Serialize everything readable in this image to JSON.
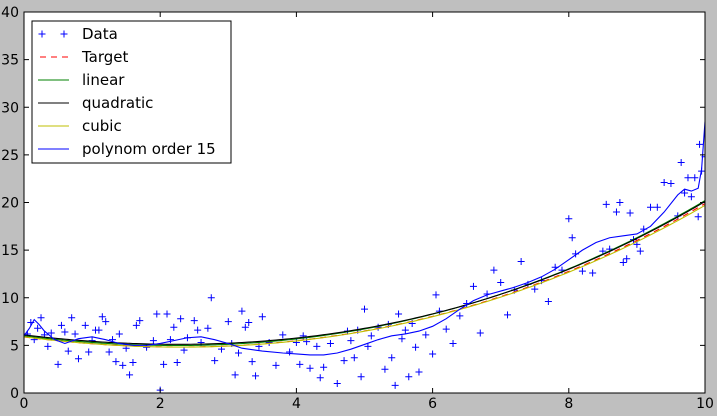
{
  "chart_data": {
    "type": "line",
    "title": "",
    "xlabel": "",
    "ylabel": "",
    "xlim": [
      0,
      10
    ],
    "ylim": [
      0,
      40
    ],
    "xticks": [
      0,
      2,
      4,
      6,
      8,
      10
    ],
    "yticks": [
      0,
      5,
      10,
      15,
      20,
      25,
      30,
      35,
      40
    ],
    "grid": false,
    "legend_position": "top-left",
    "series": [
      {
        "name": "Data",
        "style": "markers-plus",
        "color": "#0000ff",
        "points": [
          [
            0.05,
            6.2
          ],
          [
            0.1,
            7.4
          ],
          [
            0.15,
            5.6
          ],
          [
            0.2,
            6.8
          ],
          [
            0.25,
            7.9
          ],
          [
            0.3,
            6.1
          ],
          [
            0.35,
            4.9
          ],
          [
            0.4,
            6.3
          ],
          [
            0.5,
            3.0
          ],
          [
            0.55,
            7.1
          ],
          [
            0.6,
            6.4
          ],
          [
            0.65,
            4.4
          ],
          [
            0.7,
            7.9
          ],
          [
            0.75,
            6.2
          ],
          [
            0.8,
            3.6
          ],
          [
            0.9,
            7.1
          ],
          [
            0.95,
            4.3
          ],
          [
            1.0,
            5.5
          ],
          [
            1.05,
            6.6
          ],
          [
            1.1,
            6.6
          ],
          [
            1.15,
            8.0
          ],
          [
            1.2,
            7.5
          ],
          [
            1.25,
            4.3
          ],
          [
            1.3,
            5.6
          ],
          [
            1.35,
            3.3
          ],
          [
            1.4,
            6.2
          ],
          [
            1.45,
            2.9
          ],
          [
            1.5,
            4.7
          ],
          [
            1.55,
            1.9
          ],
          [
            1.6,
            3.2
          ],
          [
            1.65,
            7.1
          ],
          [
            1.7,
            7.6
          ],
          [
            1.8,
            4.8
          ],
          [
            1.9,
            5.5
          ],
          [
            1.95,
            8.3
          ],
          [
            2.0,
            0.3
          ],
          [
            2.05,
            3.0
          ],
          [
            2.1,
            8.3
          ],
          [
            2.15,
            5.6
          ],
          [
            2.2,
            6.9
          ],
          [
            2.25,
            3.2
          ],
          [
            2.3,
            7.8
          ],
          [
            2.35,
            4.5
          ],
          [
            2.4,
            5.8
          ],
          [
            2.5,
            7.6
          ],
          [
            2.55,
            6.6
          ],
          [
            2.6,
            5.3
          ],
          [
            2.7,
            6.8
          ],
          [
            2.75,
            10.0
          ],
          [
            2.8,
            3.4
          ],
          [
            2.9,
            4.6
          ],
          [
            3.0,
            7.5
          ],
          [
            3.05,
            5.2
          ],
          [
            3.1,
            1.9
          ],
          [
            3.15,
            4.2
          ],
          [
            3.2,
            8.6
          ],
          [
            3.25,
            6.9
          ],
          [
            3.3,
            7.4
          ],
          [
            3.35,
            3.3
          ],
          [
            3.4,
            1.8
          ],
          [
            3.45,
            4.9
          ],
          [
            3.5,
            8.0
          ],
          [
            3.6,
            5.3
          ],
          [
            3.7,
            2.9
          ],
          [
            3.8,
            6.1
          ],
          [
            3.9,
            4.3
          ],
          [
            4.0,
            5.3
          ],
          [
            4.05,
            3.0
          ],
          [
            4.1,
            6.0
          ],
          [
            4.15,
            5.4
          ],
          [
            4.2,
            2.6
          ],
          [
            4.3,
            4.9
          ],
          [
            4.35,
            1.6
          ],
          [
            4.4,
            2.7
          ],
          [
            4.5,
            5.2
          ],
          [
            4.6,
            1.0
          ],
          [
            4.7,
            3.4
          ],
          [
            4.75,
            6.5
          ],
          [
            4.8,
            5.5
          ],
          [
            4.85,
            3.7
          ],
          [
            4.9,
            6.6
          ],
          [
            4.95,
            1.7
          ],
          [
            5.0,
            8.8
          ],
          [
            5.05,
            4.9
          ],
          [
            5.1,
            6.0
          ],
          [
            5.2,
            6.9
          ],
          [
            5.3,
            2.5
          ],
          [
            5.35,
            7.2
          ],
          [
            5.4,
            3.7
          ],
          [
            5.45,
            0.8
          ],
          [
            5.5,
            8.3
          ],
          [
            5.55,
            5.7
          ],
          [
            5.6,
            6.6
          ],
          [
            5.65,
            1.7
          ],
          [
            5.7,
            7.3
          ],
          [
            5.75,
            4.8
          ],
          [
            5.8,
            2.2
          ],
          [
            5.9,
            6.1
          ],
          [
            6.0,
            4.1
          ],
          [
            6.05,
            10.3
          ],
          [
            6.1,
            8.6
          ],
          [
            6.2,
            6.7
          ],
          [
            6.3,
            5.2
          ],
          [
            6.4,
            8.1
          ],
          [
            6.5,
            9.4
          ],
          [
            6.6,
            11.2
          ],
          [
            6.7,
            6.3
          ],
          [
            6.8,
            10.4
          ],
          [
            6.9,
            12.9
          ],
          [
            7.0,
            11.6
          ],
          [
            7.1,
            8.2
          ],
          [
            7.2,
            10.8
          ],
          [
            7.3,
            13.8
          ],
          [
            7.4,
            11.4
          ],
          [
            7.5,
            10.9
          ],
          [
            7.6,
            11.8
          ],
          [
            7.7,
            9.6
          ],
          [
            7.8,
            13.2
          ],
          [
            7.9,
            12.9
          ],
          [
            8.0,
            18.3
          ],
          [
            8.05,
            16.3
          ],
          [
            8.1,
            14.6
          ],
          [
            8.2,
            12.8
          ],
          [
            8.35,
            12.6
          ],
          [
            8.5,
            14.9
          ],
          [
            8.55,
            19.8
          ],
          [
            8.6,
            15.1
          ],
          [
            8.7,
            19.0
          ],
          [
            8.75,
            20.0
          ],
          [
            8.8,
            13.7
          ],
          [
            8.85,
            14.1
          ],
          [
            8.9,
            18.9
          ],
          [
            8.95,
            16.1
          ],
          [
            9.0,
            15.6
          ],
          [
            9.05,
            14.9
          ],
          [
            9.1,
            17.2
          ],
          [
            9.2,
            19.5
          ],
          [
            9.3,
            19.5
          ],
          [
            9.4,
            22.1
          ],
          [
            9.5,
            22.0
          ],
          [
            9.6,
            18.6
          ],
          [
            9.65,
            24.2
          ],
          [
            9.7,
            21.0
          ],
          [
            9.75,
            22.6
          ],
          [
            9.8,
            20.6
          ],
          [
            9.85,
            22.6
          ],
          [
            9.9,
            18.5
          ],
          [
            9.92,
            26.1
          ],
          [
            9.95,
            23.3
          ],
          [
            10.0,
            24.8
          ]
        ]
      },
      {
        "name": "Target",
        "style": "dashed",
        "color": "#ff0000",
        "coef": [
          5.887,
          -0.9,
          0.18,
          0.005
        ]
      },
      {
        "name": "linear",
        "style": "solid",
        "color": "#008000",
        "coef": [
          6.0,
          -0.88,
          0.18,
          0.005
        ]
      },
      {
        "name": "quadratic",
        "style": "solid",
        "color": "#000000",
        "coef": [
          6.1,
          -0.85,
          0.17,
          0.0055
        ]
      },
      {
        "name": "cubic",
        "style": "solid",
        "color": "#bfbf00",
        "coef": [
          5.9,
          -0.92,
          0.185,
          0.0045
        ]
      },
      {
        "name": "polynom order 15",
        "style": "solid",
        "color": "#0000ff",
        "points": [
          [
            0,
            6.0
          ],
          [
            0.08,
            6.8
          ],
          [
            0.15,
            7.7
          ],
          [
            0.22,
            7.2
          ],
          [
            0.3,
            6.5
          ],
          [
            0.45,
            5.6
          ],
          [
            0.6,
            5.2
          ],
          [
            0.8,
            5.7
          ],
          [
            1.0,
            5.9
          ],
          [
            1.2,
            5.6
          ],
          [
            1.4,
            5.2
          ],
          [
            1.6,
            5.0
          ],
          [
            1.8,
            5.0
          ],
          [
            2.0,
            5.2
          ],
          [
            2.2,
            5.5
          ],
          [
            2.4,
            5.8
          ],
          [
            2.6,
            5.9
          ],
          [
            2.8,
            5.6
          ],
          [
            3.0,
            5.2
          ],
          [
            3.2,
            4.7
          ],
          [
            3.5,
            4.4
          ],
          [
            3.8,
            4.2
          ],
          [
            4.0,
            4.1
          ],
          [
            4.2,
            4.0
          ],
          [
            4.4,
            4.0
          ],
          [
            4.6,
            4.2
          ],
          [
            4.8,
            4.6
          ],
          [
            5.0,
            5.1
          ],
          [
            5.2,
            5.6
          ],
          [
            5.4,
            6.0
          ],
          [
            5.6,
            6.2
          ],
          [
            5.8,
            6.5
          ],
          [
            6.0,
            7.0
          ],
          [
            6.2,
            7.8
          ],
          [
            6.4,
            8.8
          ],
          [
            6.6,
            9.7
          ],
          [
            6.8,
            10.3
          ],
          [
            7.0,
            10.7
          ],
          [
            7.2,
            11.1
          ],
          [
            7.4,
            11.6
          ],
          [
            7.6,
            12.2
          ],
          [
            7.8,
            13.0
          ],
          [
            8.0,
            14.0
          ],
          [
            8.2,
            15.0
          ],
          [
            8.4,
            15.8
          ],
          [
            8.6,
            16.3
          ],
          [
            8.8,
            16.5
          ],
          [
            9.0,
            16.7
          ],
          [
            9.2,
            17.5
          ],
          [
            9.4,
            19.0
          ],
          [
            9.6,
            20.8
          ],
          [
            9.7,
            21.4
          ],
          [
            9.8,
            21.2
          ],
          [
            9.9,
            21.5
          ],
          [
            9.95,
            23.5
          ],
          [
            10.0,
            28.5
          ]
        ]
      }
    ]
  }
}
